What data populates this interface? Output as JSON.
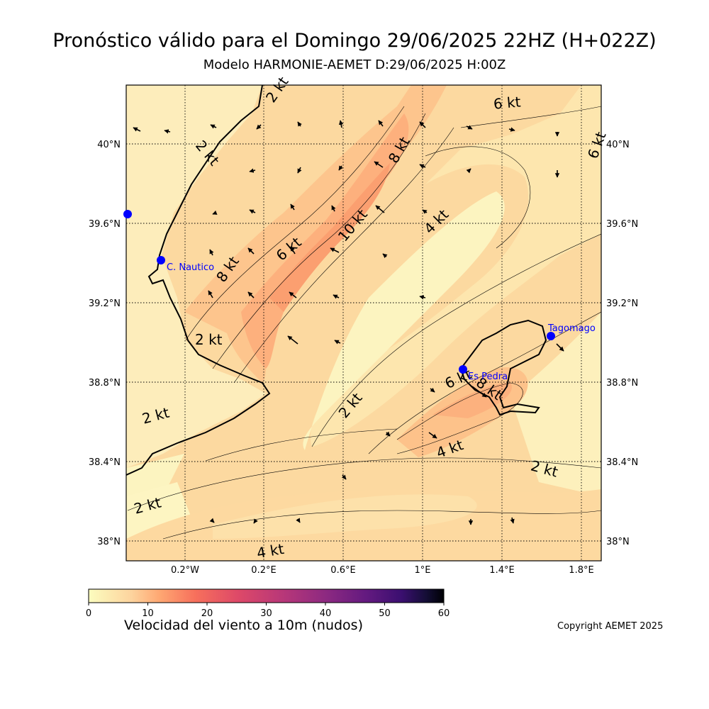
{
  "header": {
    "title": "Pronóstico válido para el Domingo 29/06/2025 22HZ (H+022Z)",
    "subtitle": "Modelo HARMONIE-AEMET D:29/06/2025 H:00Z"
  },
  "map": {
    "lat_ticks": [
      "40°N",
      "39.6°N",
      "39.2°N",
      "38.8°N",
      "38.4°N",
      "38°N"
    ],
    "lon_ticks": [
      "0.2°W",
      "0.2°E",
      "0.6°E",
      "1°E",
      "1.4°E",
      "1.8°E"
    ],
    "contour_labels": [
      "2 kt",
      "2 kt",
      "8 kt",
      "6 kt",
      "10 kt",
      "8 kt",
      "4 kt",
      "6 kt",
      "6 kt",
      "2 kt",
      "2 kt",
      "2 kt",
      "6 kt",
      "8 kt",
      "4 kt",
      "2 kt",
      "2 kt",
      "4 kt"
    ],
    "stations": [
      {
        "name": "C. Nautico"
      },
      {
        "name": "Tagomago"
      },
      {
        "name": "Es Pedra"
      },
      {
        "name": ""
      }
    ],
    "colors": {
      "land_line": "#000000",
      "station": "#0000ff"
    }
  },
  "colorbar": {
    "ticks": [
      "0",
      "10",
      "20",
      "30",
      "40",
      "50",
      "60"
    ],
    "label": "Velocidad del viento a 10m (nudos)",
    "colormap": "magma_r"
  },
  "footer": {
    "copyright": "Copyright AEMET 2025"
  }
}
